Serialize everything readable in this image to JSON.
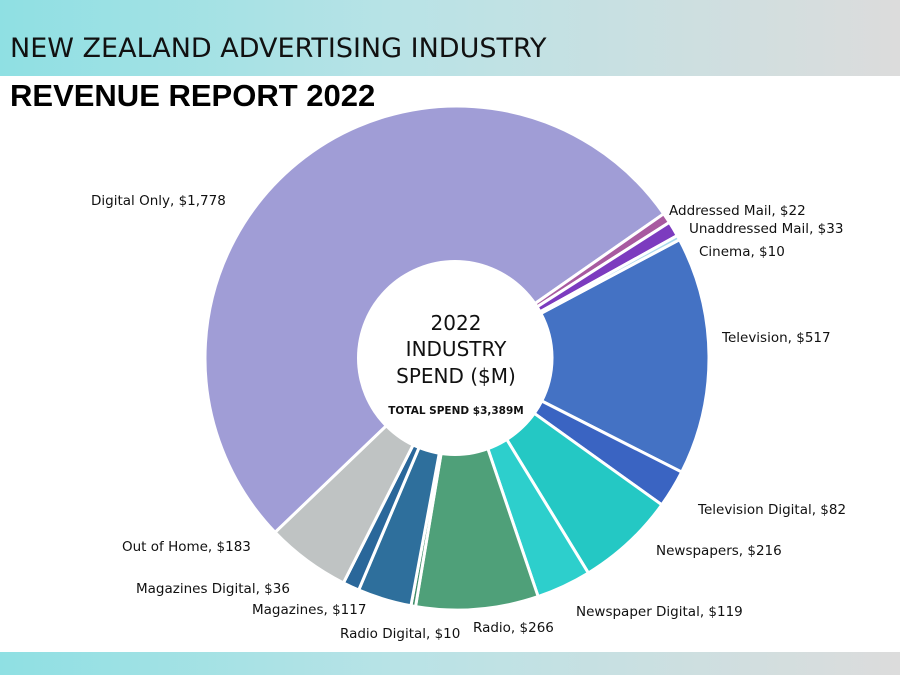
{
  "header": {
    "title": "NEW ZEALAND ADVERTISING INDUSTRY",
    "subtitle": "REVENUE REPORT 2022"
  },
  "chart_data": {
    "type": "pie",
    "style": "donut",
    "center": {
      "line1": "2022",
      "line2": "INDUSTRY",
      "line3": "SPEND ($M)",
      "total": "TOTAL SPEND $3,389M"
    },
    "slices": [
      {
        "name": "Television",
        "value": 517,
        "label": "Television, $517",
        "color": "#4472c4"
      },
      {
        "name": "Television Digital",
        "value": 82,
        "label": "Television Digital, $82",
        "color": "#3a64c2"
      },
      {
        "name": "Newspapers",
        "value": 216,
        "label": "Newspapers, $216",
        "color": "#24c8c4"
      },
      {
        "name": "Newspaper Digital",
        "value": 119,
        "label": "Newspaper Digital, $119",
        "color": "#2dcfcc"
      },
      {
        "name": "Radio",
        "value": 266,
        "label": "Radio, $266",
        "color": "#4fa079"
      },
      {
        "name": "Radio Digital",
        "value": 10,
        "label": "Radio Digital, $10",
        "color": "#3f8c68"
      },
      {
        "name": "Magazines",
        "value": 117,
        "label": "Magazines, $117",
        "color": "#2e6f9c"
      },
      {
        "name": "Magazines Digital",
        "value": 36,
        "label": "Magazines Digital, $36",
        "color": "#2a679a"
      },
      {
        "name": "Out of Home",
        "value": 183,
        "label": "Out of Home, $183",
        "color": "#bfc3c3"
      },
      {
        "name": "Digital Only",
        "value": 1778,
        "label": "Digital Only, $1,778",
        "color": "#a09dd6"
      },
      {
        "name": "Addressed Mail",
        "value": 22,
        "label": "Addressed Mail, $22",
        "color": "#a85aa0"
      },
      {
        "name": "Unaddressed Mail",
        "value": 33,
        "label": "Unaddressed Mail, $33",
        "color": "#7c3bbf"
      },
      {
        "name": "Cinema",
        "value": 10,
        "label": "Cinema, $10",
        "color": "#a8d8ec"
      }
    ]
  }
}
